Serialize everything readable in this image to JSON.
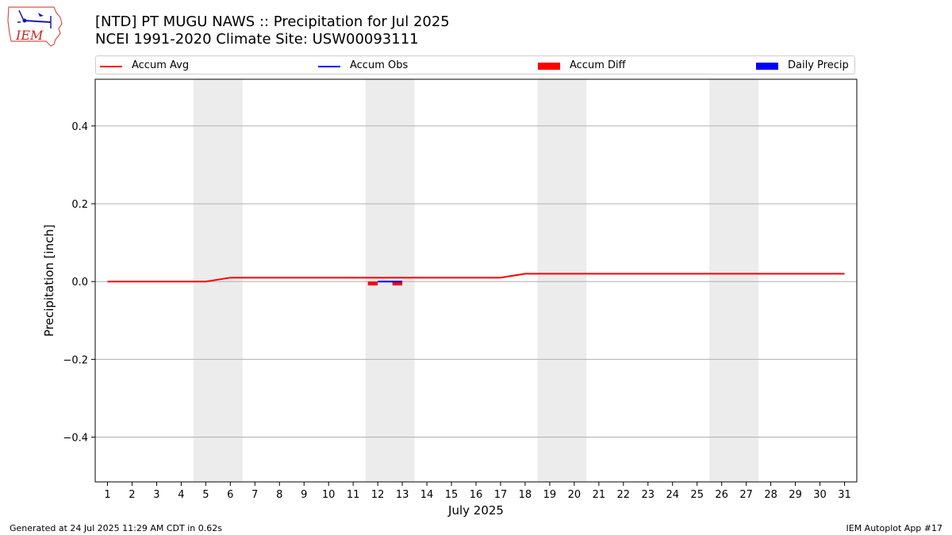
{
  "logo": {
    "text": "IEM"
  },
  "header": {
    "title_line1": "[NTD] PT MUGU NAWS :: Precipitation for Jul 2025",
    "title_line2": "NCEI 1991-2020 Climate Site: USW00093111"
  },
  "legend": [
    {
      "label": "Accum Avg",
      "kind": "line",
      "color": "#ff0000"
    },
    {
      "label": "Accum Obs",
      "kind": "line",
      "color": "#0000ff"
    },
    {
      "label": "Accum Diff",
      "kind": "box",
      "color": "#ff0000"
    },
    {
      "label": "Daily Precip",
      "kind": "box",
      "color": "#0000ff"
    }
  ],
  "footer": {
    "generated": "Generated at 24 Jul 2025 11:29 AM CDT in 0.62s",
    "app": "IEM Autoplot App #17"
  },
  "chart_data": {
    "type": "line",
    "xlabel": "July 2025",
    "ylabel": "Precipitation [inch]",
    "xlim": [
      0.5,
      31.5
    ],
    "ylim": [
      -0.515,
      0.52
    ],
    "x_ticks": [
      1,
      2,
      3,
      4,
      5,
      6,
      7,
      8,
      9,
      10,
      11,
      12,
      13,
      14,
      15,
      16,
      17,
      18,
      19,
      20,
      21,
      22,
      23,
      24,
      25,
      26,
      27,
      28,
      29,
      30,
      31
    ],
    "y_ticks": [
      -0.4,
      -0.2,
      0.0,
      0.2,
      0.4
    ],
    "y_tick_labels": [
      "−0.4",
      "−0.2",
      "0.0",
      "0.2",
      "0.4"
    ],
    "grid": true,
    "weekend_shading": [
      [
        4.5,
        6.5
      ],
      [
        11.5,
        13.5
      ],
      [
        18.5,
        20.5
      ],
      [
        25.5,
        27.5
      ]
    ],
    "series": [
      {
        "name": "Accum Avg",
        "kind": "line",
        "color": "#ff0000",
        "x": [
          1,
          2,
          3,
          4,
          5,
          6,
          7,
          8,
          9,
          10,
          11,
          12,
          13,
          14,
          15,
          16,
          17,
          18,
          19,
          20,
          21,
          22,
          23,
          24,
          25,
          26,
          27,
          28,
          29,
          30,
          31
        ],
        "values": [
          0,
          0,
          0,
          0,
          0,
          0.01,
          0.01,
          0.01,
          0.01,
          0.01,
          0.01,
          0.01,
          0.01,
          0.01,
          0.01,
          0.01,
          0.01,
          0.02,
          0.02,
          0.02,
          0.02,
          0.02,
          0.02,
          0.02,
          0.02,
          0.02,
          0.02,
          0.02,
          0.02,
          0.02,
          0.02
        ]
      },
      {
        "name": "Accum Obs",
        "kind": "line",
        "color": "#0000ff",
        "x": [
          12,
          13
        ],
        "values": [
          0,
          0
        ]
      },
      {
        "name": "Accum Diff",
        "kind": "bar",
        "color": "#ff0000",
        "x": [
          12,
          13
        ],
        "values": [
          -0.01,
          -0.01
        ]
      },
      {
        "name": "Daily Precip",
        "kind": "bar",
        "color": "#0000ff",
        "x": [
          12,
          13
        ],
        "values": [
          0,
          0
        ]
      }
    ]
  }
}
